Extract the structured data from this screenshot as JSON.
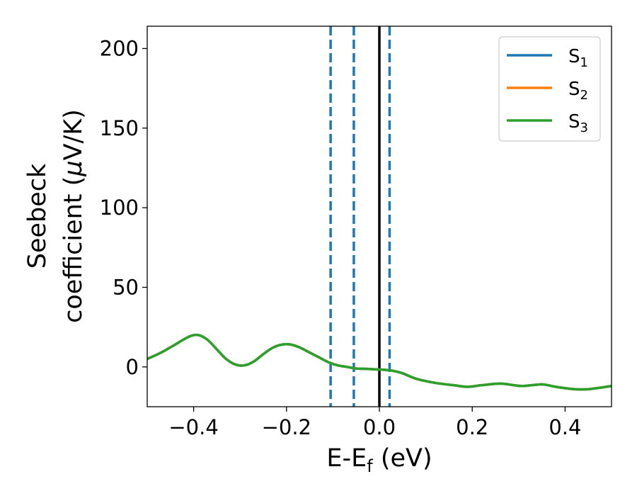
{
  "chart_data": {
    "type": "line",
    "xlabel": "E-E",
    "xlabel_sub": "f",
    "xlabel_unit": " (eV)",
    "ylabel_line1": "Seebeck",
    "ylabel_line2": "coefficient  (",
    "ylabel_mu": "μ",
    "ylabel_unit": "V/K)",
    "xlim": [
      -0.5,
      0.5
    ],
    "ylim": [
      -25,
      214
    ],
    "xticks": [
      -0.4,
      -0.2,
      0.0,
      0.2,
      0.4
    ],
    "xtick_labels": [
      "−0.4",
      "−0.2",
      "0.0",
      "0.2",
      "0.4"
    ],
    "yticks": [
      0,
      50,
      100,
      150,
      200
    ],
    "ytick_labels": [
      "0",
      "50",
      "100",
      "150",
      "200"
    ],
    "legend_position": "top-right",
    "grid": false,
    "series": [
      {
        "name": "S",
        "sub": "1",
        "color": "#1f77b4",
        "x": [
          -0.5,
          -0.47,
          -0.44,
          -0.41,
          -0.39,
          -0.37,
          -0.35,
          -0.33,
          -0.31,
          -0.29,
          -0.27,
          -0.25,
          -0.23,
          -0.21,
          -0.19,
          -0.17,
          -0.15,
          -0.13,
          -0.11,
          -0.09,
          -0.07,
          -0.05,
          -0.03,
          -0.01,
          0.01,
          0.03,
          0.05,
          0.08,
          0.12,
          0.16,
          0.19,
          0.22,
          0.26,
          0.29,
          0.31,
          0.35,
          0.38,
          0.42,
          0.45,
          0.5
        ],
        "y": [
          5,
          9,
          14,
          19,
          20,
          17,
          11,
          5,
          1.5,
          1,
          3.5,
          8,
          12,
          14,
          14,
          12,
          9,
          6,
          3,
          1,
          0,
          -1,
          -1.2,
          -1.5,
          -1.8,
          -2.5,
          -4,
          -7.5,
          -10,
          -11.5,
          -12.5,
          -11.5,
          -10.5,
          -11.5,
          -12,
          -11,
          -12.5,
          -14,
          -14,
          -12
        ]
      },
      {
        "name": "S",
        "sub": "2",
        "color": "#ff7f0e",
        "x": [
          -0.5,
          -0.47,
          -0.44,
          -0.41,
          -0.39,
          -0.37,
          -0.35,
          -0.33,
          -0.31,
          -0.29,
          -0.27,
          -0.25,
          -0.23,
          -0.21,
          -0.19,
          -0.17,
          -0.15,
          -0.13,
          -0.11,
          -0.09,
          -0.07,
          -0.05,
          -0.03,
          -0.01,
          0.01,
          0.03,
          0.05,
          0.08,
          0.12,
          0.16,
          0.19,
          0.22,
          0.26,
          0.29,
          0.31,
          0.35,
          0.38,
          0.42,
          0.45,
          0.5
        ],
        "y": [
          5,
          9,
          14,
          19,
          20,
          17,
          11,
          5,
          1.5,
          1,
          3.5,
          8,
          12,
          14,
          14,
          12,
          9,
          6,
          3,
          1,
          0,
          -1,
          -1.2,
          -1.5,
          -1.8,
          -2.5,
          -4,
          -7.5,
          -10,
          -11.5,
          -12.5,
          -11.5,
          -10.5,
          -11.5,
          -12,
          -11,
          -12.5,
          -14,
          -14,
          -12
        ]
      },
      {
        "name": "S",
        "sub": "3",
        "color": "#2ca02c",
        "x": [
          -0.5,
          -0.47,
          -0.44,
          -0.41,
          -0.39,
          -0.37,
          -0.35,
          -0.33,
          -0.31,
          -0.29,
          -0.27,
          -0.25,
          -0.23,
          -0.21,
          -0.19,
          -0.17,
          -0.15,
          -0.13,
          -0.11,
          -0.09,
          -0.07,
          -0.05,
          -0.03,
          -0.01,
          0.01,
          0.03,
          0.05,
          0.08,
          0.12,
          0.16,
          0.19,
          0.22,
          0.26,
          0.29,
          0.31,
          0.35,
          0.38,
          0.42,
          0.45,
          0.5
        ],
        "y": [
          5,
          9,
          14,
          19,
          20,
          17,
          11,
          5,
          1.5,
          1,
          3.5,
          8,
          12,
          14,
          14,
          12,
          9,
          6,
          3,
          1,
          0,
          -1,
          -1.2,
          -1.5,
          -1.8,
          -2.5,
          -4,
          -7.5,
          -10,
          -11.5,
          -12.5,
          -11.5,
          -10.5,
          -11.5,
          -12,
          -11,
          -12.5,
          -14,
          -14,
          -12
        ]
      }
    ],
    "vlines": [
      {
        "x": -0.105,
        "style": "dashed",
        "color": "#1f77b4"
      },
      {
        "x": -0.055,
        "style": "dashed",
        "color": "#1f77b4"
      },
      {
        "x": 0.0,
        "style": "solid",
        "color": "#000000"
      },
      {
        "x": 0.022,
        "style": "dashed",
        "color": "#1f77b4"
      }
    ]
  }
}
